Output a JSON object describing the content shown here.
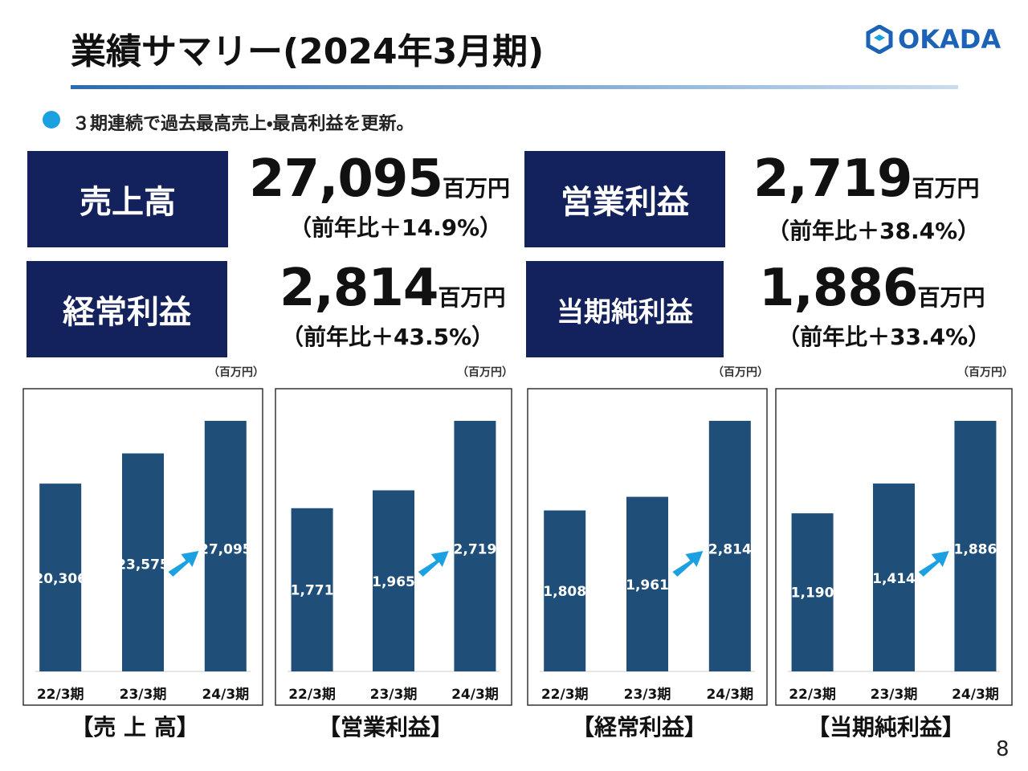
{
  "header": {
    "title": "業績サマリー(2024年3月期)",
    "logo": "OKADA",
    "bullet": "３期連続で過去最高売上・最高利益を更新。"
  },
  "kpis": [
    {
      "label": "売上高",
      "value": "27,095",
      "unit": "百万円",
      "change": "（前年比＋14.9%）"
    },
    {
      "label": "営業利益",
      "value": "2,719",
      "unit": "百万円",
      "change": "（前年比＋38.4%）"
    },
    {
      "label": "経常利益",
      "value": "2,814",
      "unit": "百万円",
      "change": "（前年比＋43.5%）"
    },
    {
      "label": "当期純利益",
      "value": "1,886",
      "unit": "百万円",
      "change": "（前年比＋33.4%）"
    }
  ],
  "chart_data": [
    {
      "type": "bar",
      "unit_label": "（百万円）",
      "caption": "【売 上 高】",
      "categories": [
        "22/3期",
        "23/3期",
        "24/3期"
      ],
      "values": [
        20306,
        23575,
        27095
      ],
      "value_labels": [
        "20,306",
        "23,575",
        "27,095"
      ],
      "color": "#1f4e79"
    },
    {
      "type": "bar",
      "unit_label": "（百万円）",
      "caption": "【営業利益】",
      "categories": [
        "22/3期",
        "23/3期",
        "24/3期"
      ],
      "values": [
        1771,
        1965,
        2719
      ],
      "value_labels": [
        "1,771",
        "1,965",
        "2,719"
      ],
      "color": "#1f4e79"
    },
    {
      "type": "bar",
      "unit_label": "（百万円）",
      "caption": "【経常利益】",
      "categories": [
        "22/3期",
        "23/3期",
        "24/3期"
      ],
      "values": [
        1808,
        1961,
        2814
      ],
      "value_labels": [
        "1,808",
        "1,961",
        "2,814"
      ],
      "color": "#1f4e79"
    },
    {
      "type": "bar",
      "unit_label": "（百万円）",
      "caption": "【当期純利益】",
      "categories": [
        "22/3期",
        "23/3期",
        "24/3期"
      ],
      "values": [
        1190,
        1414,
        1886
      ],
      "value_labels": [
        "1,190",
        "1,414",
        "1,886"
      ],
      "color": "#1f4e79"
    }
  ],
  "page_number": "8"
}
